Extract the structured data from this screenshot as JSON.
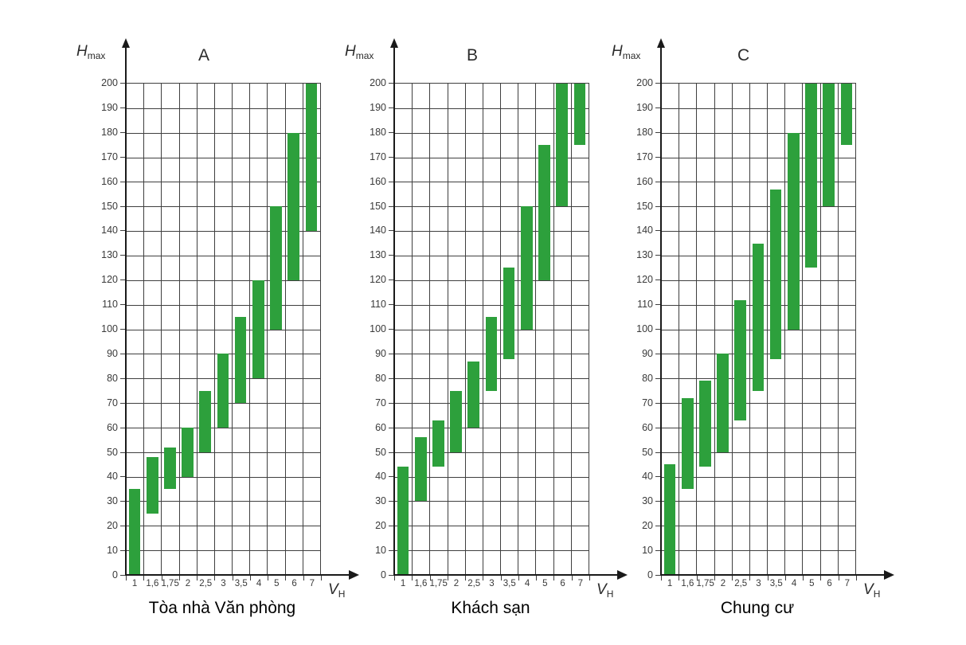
{
  "page": {
    "background": "#ffffff"
  },
  "colors": {
    "bar_green": "#2da03c",
    "grid_line": "#3f3f3f",
    "axis_line": "#1a1a1a",
    "tick_text": "#3a3a3a",
    "title_text": "#000000"
  },
  "axes": {
    "y_label_main": "H",
    "y_label_sub": "max",
    "x_label_main": "V",
    "x_label_sub": "H",
    "y_ticks": [
      "0",
      "10",
      "20",
      "30",
      "40",
      "50",
      "60",
      "70",
      "80",
      "90",
      "100",
      "110",
      "120",
      "130",
      "140",
      "150",
      "160",
      "170",
      "180",
      "190",
      "200"
    ]
  },
  "chart_data": [
    {
      "type": "bar",
      "subtype": "floating-range-bar",
      "panel_label": "A",
      "title": "Tòa nhà Văn phòng",
      "xlabel": "V_H",
      "ylabel": "H_max",
      "ylim": [
        0,
        200
      ],
      "ytick_step": 10,
      "grid": true,
      "legend": "none",
      "categories": [
        "1",
        "1,6",
        "1,75",
        "2",
        "2,5",
        "3",
        "3,5",
        "4",
        "5",
        "6",
        "7"
      ],
      "ranges": [
        [
          0,
          35
        ],
        [
          25,
          48
        ],
        [
          35,
          52
        ],
        [
          40,
          60
        ],
        [
          50,
          75
        ],
        [
          60,
          90
        ],
        [
          70,
          105
        ],
        [
          80,
          120
        ],
        [
          100,
          150
        ],
        [
          120,
          180
        ],
        [
          140,
          200
        ]
      ]
    },
    {
      "type": "bar",
      "subtype": "floating-range-bar",
      "panel_label": "B",
      "title": "Khách sạn",
      "xlabel": "V_H",
      "ylabel": "H_max",
      "ylim": [
        0,
        200
      ],
      "ytick_step": 10,
      "grid": true,
      "legend": "none",
      "categories": [
        "1",
        "1,6",
        "1,75",
        "2",
        "2,5",
        "3",
        "3,5",
        "4",
        "5",
        "6",
        "7"
      ],
      "ranges": [
        [
          0,
          44
        ],
        [
          30,
          56
        ],
        [
          44,
          63
        ],
        [
          50,
          75
        ],
        [
          60,
          87
        ],
        [
          75,
          105
        ],
        [
          88,
          125
        ],
        [
          100,
          150
        ],
        [
          120,
          175
        ],
        [
          150,
          200
        ],
        [
          175,
          200
        ]
      ]
    },
    {
      "type": "bar",
      "subtype": "floating-range-bar",
      "panel_label": "C",
      "title": "Chung cư",
      "xlabel": "V_H",
      "ylabel": "H_max",
      "ylim": [
        0,
        200
      ],
      "ytick_step": 10,
      "grid": true,
      "legend": "none",
      "categories": [
        "1",
        "1,6",
        "1,75",
        "2",
        "2,5",
        "3",
        "3,5",
        "4",
        "5",
        "6",
        "7"
      ],
      "ranges": [
        [
          0,
          45
        ],
        [
          35,
          72
        ],
        [
          44,
          79
        ],
        [
          50,
          90
        ],
        [
          63,
          112
        ],
        [
          75,
          135
        ],
        [
          88,
          157
        ],
        [
          100,
          180
        ],
        [
          125,
          200
        ],
        [
          150,
          200
        ],
        [
          175,
          200
        ]
      ]
    }
  ]
}
